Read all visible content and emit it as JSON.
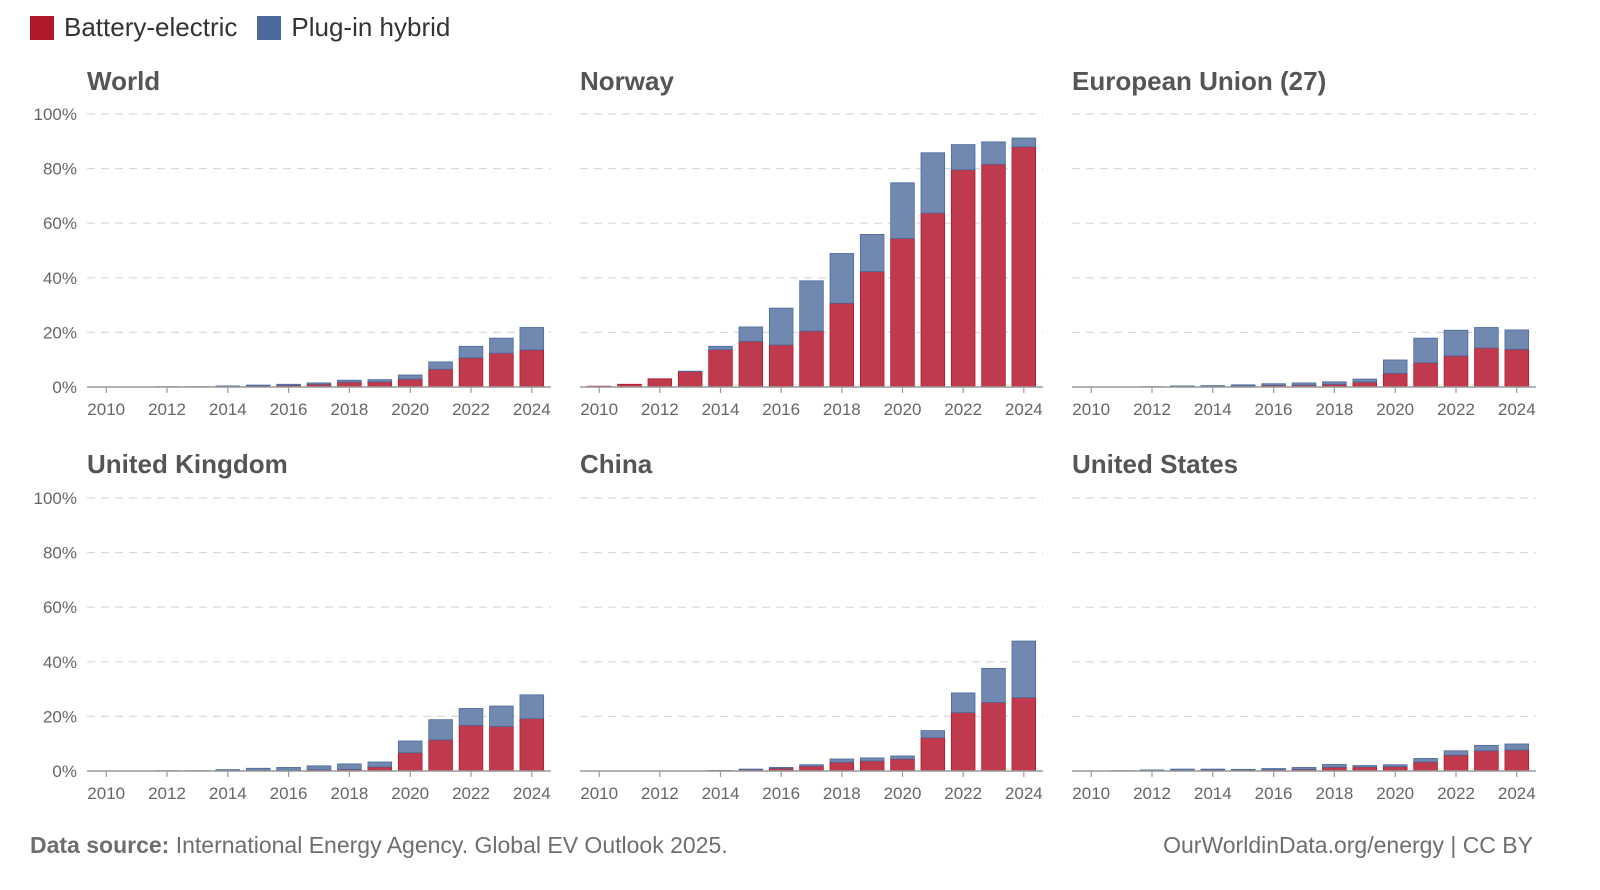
{
  "legend": {
    "items": [
      {
        "label": "Battery-electric",
        "color": "#b2182b"
      },
      {
        "label": "Plug-in hybrid",
        "color": "#4c6a9c"
      }
    ]
  },
  "footer": {
    "source_label": "Data source:",
    "source_text": " International Energy Agency. Global EV Outlook 2025.",
    "credit": "OurWorldinData.org/energy | CC BY"
  },
  "chart_data": {
    "type": "bar",
    "stacked": true,
    "title": "",
    "xlabel": "",
    "ylabel": "",
    "ylim": [
      0,
      100
    ],
    "y_ticks": [
      "0%",
      "20%",
      "40%",
      "60%",
      "80%",
      "100%"
    ],
    "x_tick_labels": [
      "2010",
      "2012",
      "2014",
      "2016",
      "2018",
      "2020",
      "2022",
      "2024"
    ],
    "grid": true,
    "legend_position": "top-left",
    "years": [
      2010,
      2011,
      2012,
      2013,
      2014,
      2015,
      2016,
      2017,
      2018,
      2019,
      2020,
      2021,
      2022,
      2023,
      2024
    ],
    "series_names": [
      "Battery-electric",
      "Plug-in hybrid"
    ],
    "colors": {
      "bev": "#b2182b",
      "phev": "#4c6a9c",
      "bev_fill": "#be3a4c",
      "phev_fill": "#7189b0"
    },
    "panels": [
      {
        "title": "World",
        "bev": [
          0.0,
          0.0,
          0.1,
          0.1,
          0.2,
          0.4,
          0.6,
          1.0,
          1.8,
          1.9,
          2.9,
          6.5,
          10.7,
          12.4,
          13.6
        ],
        "phev": [
          0.0,
          0.0,
          0.0,
          0.0,
          0.2,
          0.3,
          0.4,
          0.5,
          0.7,
          0.8,
          1.5,
          2.7,
          4.2,
          5.5,
          8.2
        ]
      },
      {
        "title": "Norway",
        "bev": [
          0.3,
          1.0,
          3.0,
          5.7,
          13.7,
          16.7,
          15.4,
          20.5,
          30.7,
          42.3,
          54.4,
          63.7,
          79.6,
          81.6,
          88.0
        ],
        "phev": [
          0.0,
          0.0,
          0.0,
          0.1,
          1.2,
          5.3,
          13.5,
          18.4,
          18.2,
          13.6,
          20.4,
          22.1,
          9.2,
          8.2,
          3.2
        ]
      },
      {
        "title": "European Union (27)",
        "bev": [
          0.0,
          0.0,
          0.1,
          0.2,
          0.3,
          0.4,
          0.6,
          0.7,
          1.0,
          1.8,
          5.0,
          8.9,
          11.4,
          14.3,
          13.8
        ],
        "phev": [
          0.0,
          0.0,
          0.0,
          0.2,
          0.2,
          0.4,
          0.6,
          0.8,
          0.9,
          1.1,
          4.9,
          9.0,
          9.4,
          7.5,
          7.1
        ]
      },
      {
        "title": "United Kingdom",
        "bev": [
          0.0,
          0.0,
          0.1,
          0.1,
          0.2,
          0.3,
          0.3,
          0.5,
          0.6,
          1.5,
          6.7,
          11.4,
          16.7,
          16.3,
          19.2
        ],
        "phev": [
          0.0,
          0.0,
          0.0,
          0.0,
          0.3,
          0.7,
          1.0,
          1.4,
          2.0,
          1.8,
          4.3,
          7.4,
          6.2,
          7.5,
          8.7
        ]
      },
      {
        "title": "China",
        "bev": [
          0.0,
          0.0,
          0.0,
          0.0,
          0.1,
          0.5,
          1.0,
          1.8,
          3.2,
          3.7,
          4.4,
          12.2,
          21.4,
          25.1,
          26.9
        ],
        "phev": [
          0.0,
          0.0,
          0.0,
          0.0,
          0.1,
          0.2,
          0.3,
          0.5,
          1.2,
          1.1,
          1.1,
          2.6,
          7.2,
          12.5,
          20.7
        ]
      },
      {
        "title": "United States",
        "bev": [
          0.0,
          0.1,
          0.1,
          0.3,
          0.4,
          0.4,
          0.5,
          0.6,
          1.4,
          1.5,
          1.6,
          3.3,
          5.8,
          7.4,
          7.7
        ],
        "phev": [
          0.0,
          0.0,
          0.3,
          0.4,
          0.3,
          0.2,
          0.4,
          0.7,
          1.0,
          0.5,
          0.7,
          1.3,
          1.6,
          2.0,
          2.2
        ]
      }
    ]
  }
}
